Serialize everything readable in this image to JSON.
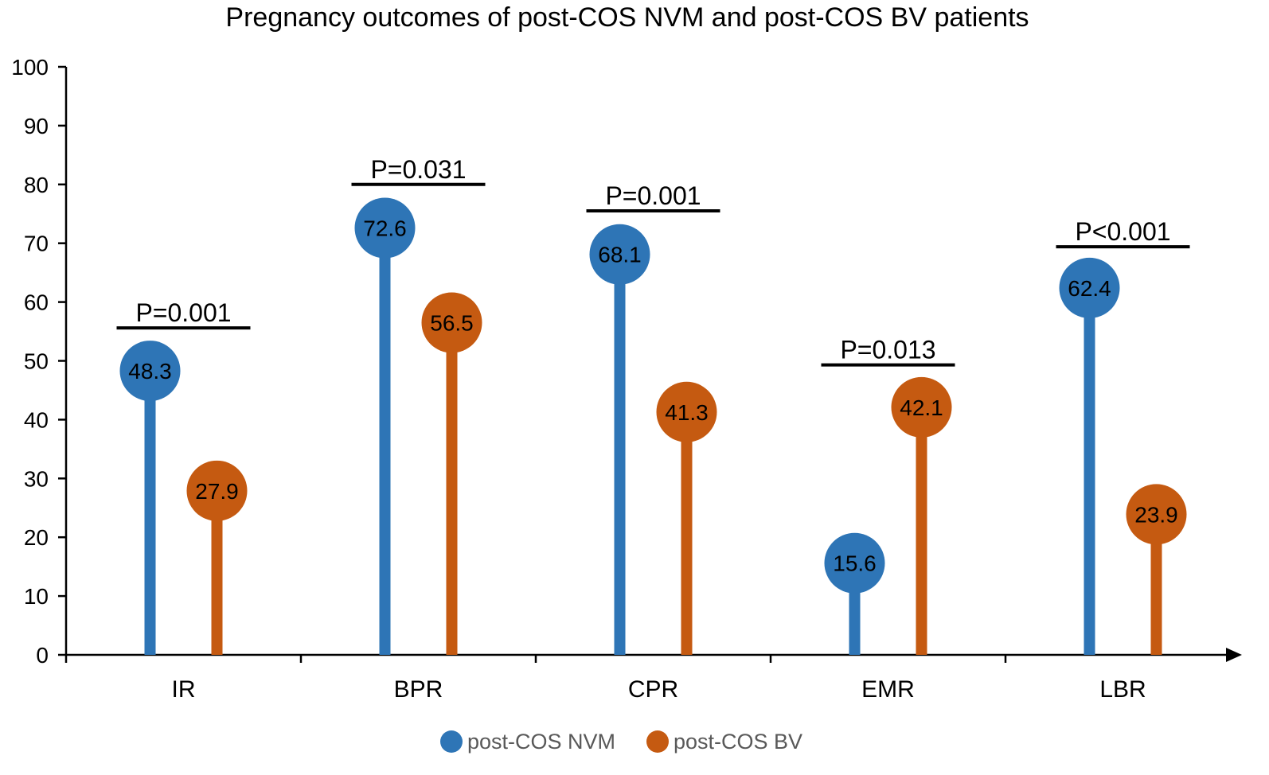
{
  "chart_data": {
    "type": "lollipop",
    "title": "Pregnancy outcomes of post-COS NVM and post-COS BV patients",
    "xlabel": "",
    "ylabel": "",
    "ylim": [
      0,
      100
    ],
    "yticks": [
      0,
      10,
      20,
      30,
      40,
      50,
      60,
      70,
      80,
      90,
      100
    ],
    "categories": [
      "IR",
      "BPR",
      "CPR",
      "EMR",
      "LBR"
    ],
    "series": [
      {
        "name": "post-COS NVM",
        "color": "#2e75b6",
        "values": [
          48.3,
          72.6,
          68.1,
          15.6,
          62.4
        ]
      },
      {
        "name": "post-COS BV",
        "color": "#c55a11",
        "values": [
          27.9,
          56.5,
          41.3,
          42.1,
          23.9
        ]
      }
    ],
    "value_labels": [
      [
        "48.3",
        "72.6",
        "68.1",
        "15.6",
        "62.4"
      ],
      [
        "27.9",
        "56.5",
        "41.3",
        "42.1",
        "23.9"
      ]
    ],
    "annotations": [
      {
        "category": "IR",
        "text": "P=0.001",
        "y": 55.6
      },
      {
        "category": "BPR",
        "text": "P=0.031",
        "y": 80
      },
      {
        "category": "CPR",
        "text": "P=0.001",
        "y": 75.5
      },
      {
        "category": "EMR",
        "text": "P=0.013",
        "y": 49.3
      },
      {
        "category": "LBR",
        "text": "P<0.001",
        "y": 69.4
      }
    ],
    "legend_position": "bottom-center",
    "grid": false
  }
}
